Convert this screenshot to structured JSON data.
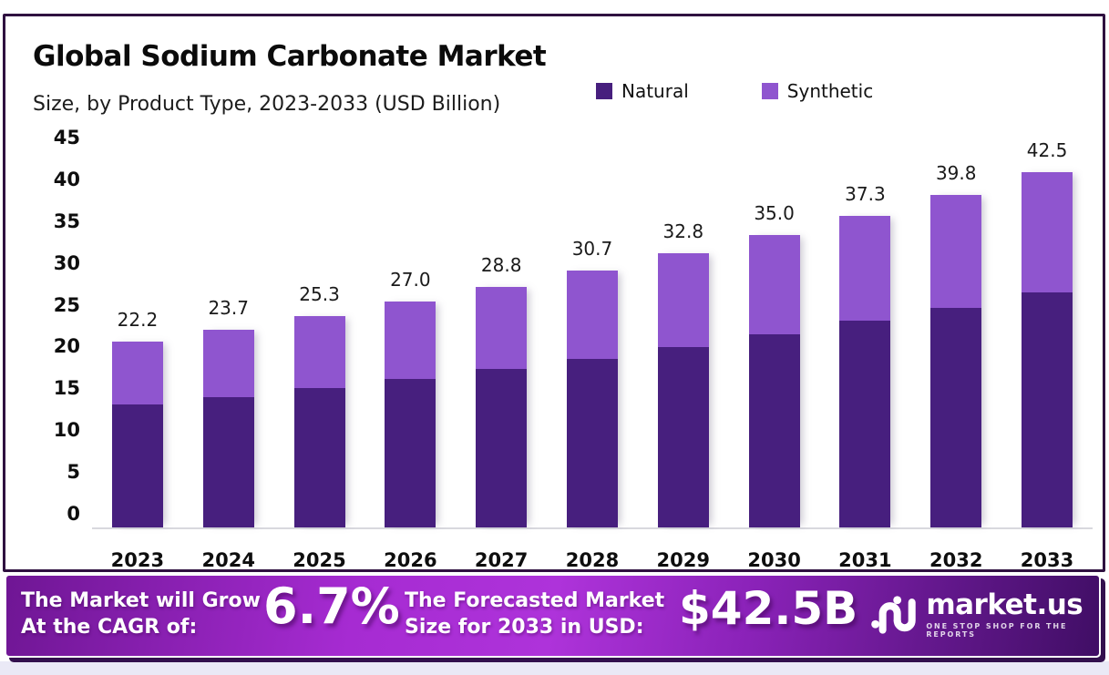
{
  "header": {
    "title": "Global Sodium Carbonate Market",
    "subtitle": "Size, by Product Type, 2023-2033 (USD Billion)"
  },
  "chart_data": {
    "type": "bar",
    "stacked": true,
    "title": "Global Sodium Carbonate Market Size, by Product Type, 2023-2033 (USD Billion)",
    "categories": [
      "2023",
      "2024",
      "2025",
      "2026",
      "2027",
      "2028",
      "2029",
      "2030",
      "2031",
      "2032",
      "2033"
    ],
    "series": [
      {
        "name": "Natural",
        "color": "#471f7e",
        "values": [
          14.7,
          15.6,
          16.7,
          17.8,
          19.0,
          20.2,
          21.6,
          23.1,
          24.7,
          26.3,
          28.1
        ]
      },
      {
        "name": "Synthetic",
        "color": "#8f55cf",
        "values": [
          7.5,
          8.1,
          8.6,
          9.2,
          9.8,
          10.5,
          11.2,
          11.9,
          12.6,
          13.5,
          14.4
        ]
      }
    ],
    "totals": [
      22.2,
      23.7,
      25.3,
      27.0,
      28.8,
      30.7,
      32.8,
      35.0,
      37.3,
      39.8,
      42.5
    ],
    "total_labels": [
      "22.2",
      "23.7",
      "25.3",
      "27.0",
      "28.8",
      "30.7",
      "32.8",
      "35.0",
      "37.3",
      "39.8",
      "42.5"
    ],
    "y_ticks": [
      0,
      5,
      10,
      15,
      20,
      25,
      30,
      35,
      40,
      45
    ],
    "ylim": [
      0,
      45
    ],
    "xlabel": "",
    "ylabel": "",
    "grid": false,
    "legend_position": "top-right"
  },
  "banner": {
    "cagr_label_line1": "The Market will Grow",
    "cagr_label_line2": "At the CAGR of:",
    "cagr_value": "6.7%",
    "forecast_label_line1": "The Forecasted Market",
    "forecast_label_line2": "Size for 2033 in USD:",
    "forecast_value": "$42.5B",
    "logo_text": "market.us",
    "logo_tagline": "ONE STOP SHOP FOR THE REPORTS"
  },
  "colors": {
    "natural": "#471f7e",
    "synthetic": "#8f55cf",
    "card_border": "#2f1140",
    "banner_gradient_left": "#6f1694",
    "banner_gradient_center": "#ae33da",
    "banner_gradient_right": "#400e65",
    "page_bottom_strip": "#eae9f6"
  }
}
